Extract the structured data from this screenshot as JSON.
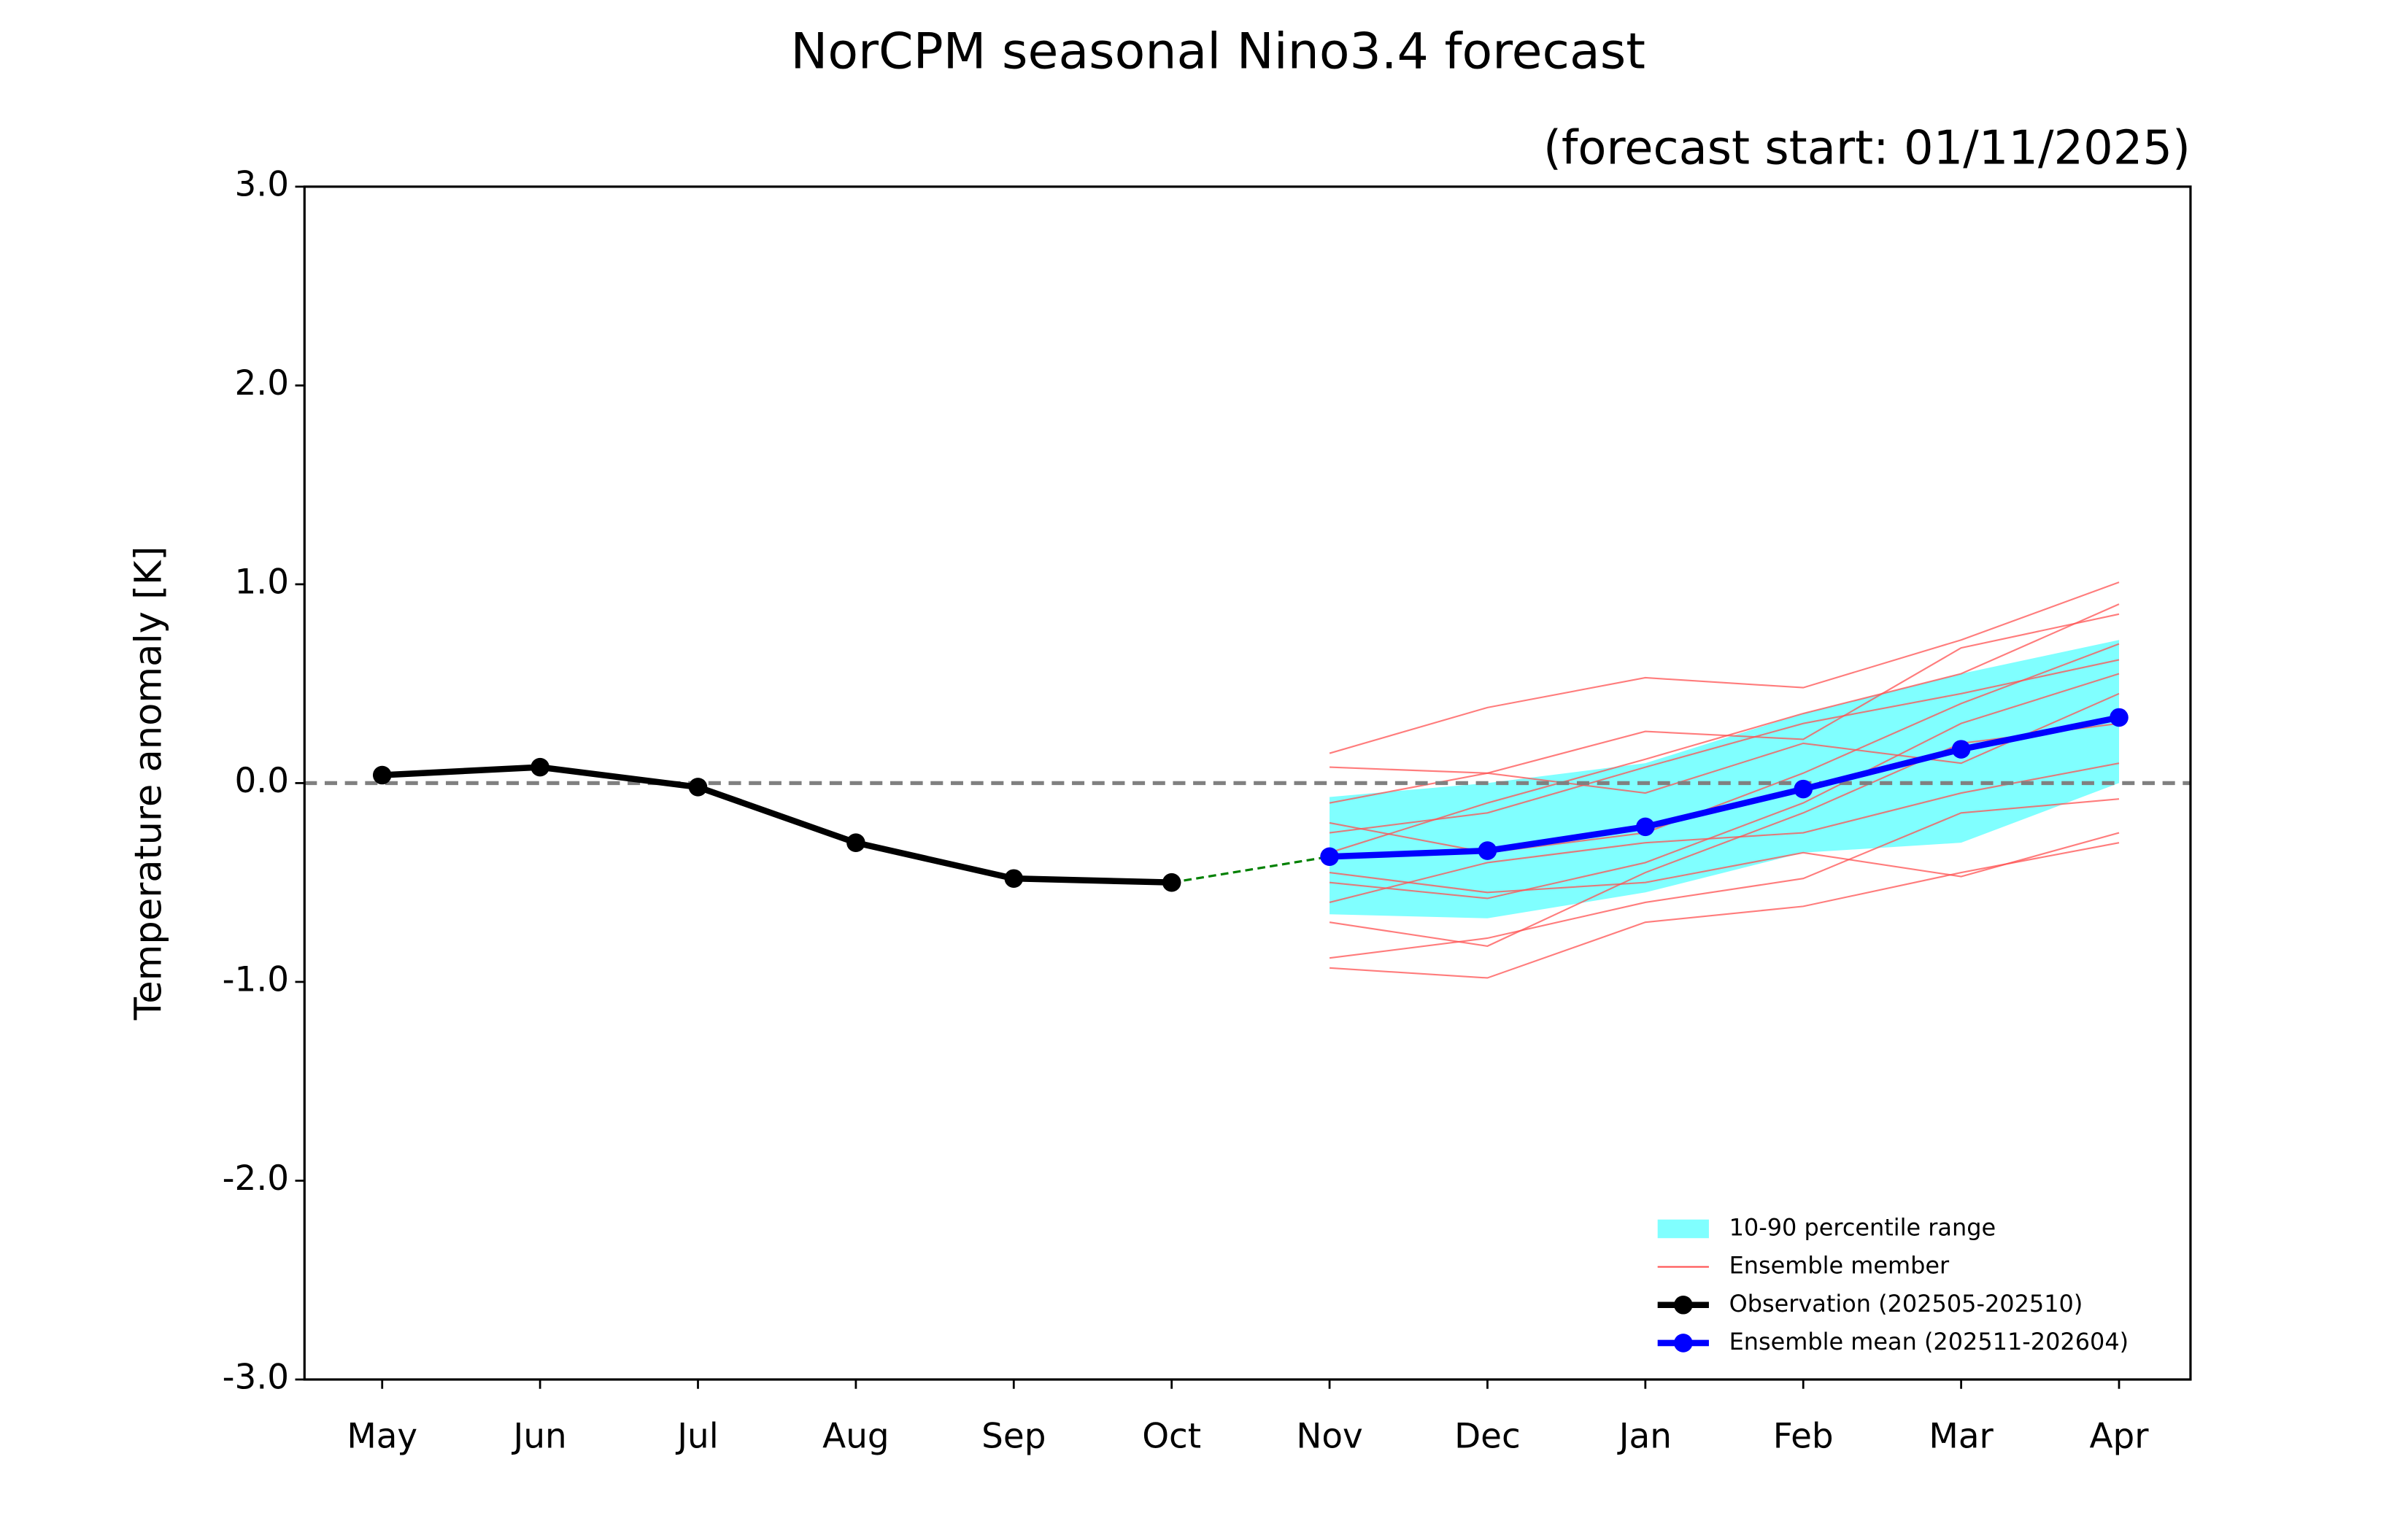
{
  "chart_data": {
    "type": "ensemble-line",
    "title": "NorCPM seasonal Nino3.4 forecast",
    "subtitle": "(forecast start: 01/11/2025)",
    "y_label": "Temperature anomaly [K]",
    "categories": [
      "May",
      "Jun",
      "Jul",
      "Aug",
      "Sep",
      "Oct",
      "Nov",
      "Dec",
      "Jan",
      "Feb",
      "Mar",
      "Apr"
    ],
    "ylim": [
      -3,
      3
    ],
    "yticks": [
      {
        "value": -3,
        "label": "-3.0"
      },
      {
        "value": -2,
        "label": "-2.0"
      },
      {
        "value": -1,
        "label": "-1.0"
      },
      {
        "value": 0,
        "label": "0.0"
      },
      {
        "value": 1,
        "label": "1.0"
      },
      {
        "value": 2,
        "label": "2.0"
      },
      {
        "value": 3,
        "label": "3.0"
      }
    ],
    "zero_line": 0,
    "band": {
      "name": "10-90 percentile range",
      "color": "#80ffff",
      "lower": [
        null,
        null,
        null,
        null,
        null,
        null,
        -0.66,
        -0.68,
        -0.55,
        -0.35,
        -0.3,
        0.0
      ],
      "upper": [
        null,
        null,
        null,
        null,
        null,
        null,
        -0.07,
        0.0,
        0.1,
        0.35,
        0.55,
        0.72
      ]
    },
    "ensemble_members": {
      "name": "Ensemble member",
      "color": "#ff5050",
      "members": [
        [
          null,
          null,
          null,
          null,
          null,
          null,
          0.15,
          0.38,
          0.53,
          0.48,
          0.72,
          1.01
        ],
        [
          null,
          null,
          null,
          null,
          null,
          null,
          -0.93,
          -0.98,
          -0.7,
          -0.62,
          -0.45,
          -0.3
        ],
        [
          null,
          null,
          null,
          null,
          null,
          null,
          0.08,
          0.05,
          0.26,
          0.22,
          0.68,
          0.85
        ],
        [
          null,
          null,
          null,
          null,
          null,
          null,
          -0.88,
          -0.78,
          -0.6,
          -0.48,
          -0.15,
          -0.08
        ],
        [
          null,
          null,
          null,
          null,
          null,
          null,
          -0.35,
          -0.1,
          0.12,
          0.35,
          0.55,
          0.9
        ],
        [
          null,
          null,
          null,
          null,
          null,
          null,
          -0.5,
          -0.58,
          -0.4,
          -0.1,
          0.3,
          0.55
        ],
        [
          null,
          null,
          null,
          null,
          null,
          null,
          -0.2,
          -0.35,
          -0.25,
          0.05,
          0.4,
          0.7
        ],
        [
          null,
          null,
          null,
          null,
          null,
          null,
          -0.6,
          -0.4,
          -0.3,
          -0.25,
          -0.05,
          0.1
        ],
        [
          null,
          null,
          null,
          null,
          null,
          null,
          -0.1,
          0.05,
          -0.05,
          0.2,
          0.1,
          0.45
        ],
        [
          null,
          null,
          null,
          null,
          null,
          null,
          -0.45,
          -0.55,
          -0.5,
          -0.35,
          -0.47,
          -0.25
        ],
        [
          null,
          null,
          null,
          null,
          null,
          null,
          -0.7,
          -0.82,
          -0.45,
          -0.15,
          0.2,
          0.3
        ],
        [
          null,
          null,
          null,
          null,
          null,
          null,
          -0.25,
          -0.15,
          0.08,
          0.3,
          0.45,
          0.62
        ]
      ]
    },
    "series": [
      {
        "name": "Observation (202505-202510)",
        "color": "#000000",
        "values": [
          0.04,
          0.08,
          -0.02,
          -0.3,
          -0.48,
          -0.5,
          null,
          null,
          null,
          null,
          null,
          null
        ]
      },
      {
        "name": "Ensemble mean (202511-202604)",
        "color": "#0000ff",
        "values": [
          null,
          null,
          null,
          null,
          null,
          null,
          -0.37,
          -0.34,
          -0.22,
          -0.03,
          0.17,
          0.33
        ]
      }
    ],
    "connector_color": "#008000",
    "legend": "lower right"
  }
}
